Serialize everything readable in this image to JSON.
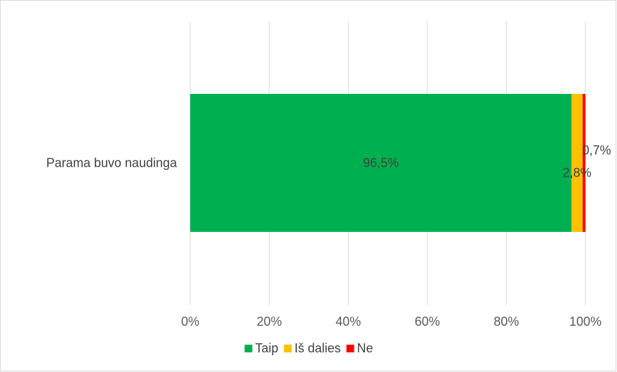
{
  "chart_data": {
    "type": "bar",
    "orientation": "horizontal",
    "stacked": "percent",
    "categories": [
      "Parama buvo naudinga"
    ],
    "series": [
      {
        "name": "Taip",
        "values": [
          96.5
        ],
        "color": "#00B050",
        "label": "96,5%"
      },
      {
        "name": "Iš dalies",
        "values": [
          2.8
        ],
        "color": "#FFC000",
        "label": "2,8%"
      },
      {
        "name": "Ne",
        "values": [
          0.7
        ],
        "color": "#FF0000",
        "label": "0,7%"
      }
    ],
    "xlim": [
      0,
      100
    ],
    "x_ticks": [
      0,
      20,
      40,
      60,
      80,
      100
    ],
    "x_tick_labels": [
      "0%",
      "20%",
      "40%",
      "60%",
      "80%",
      "100%"
    ],
    "grid": "vertical",
    "legend": "bottom",
    "title": "",
    "xlabel": "",
    "ylabel": ""
  }
}
